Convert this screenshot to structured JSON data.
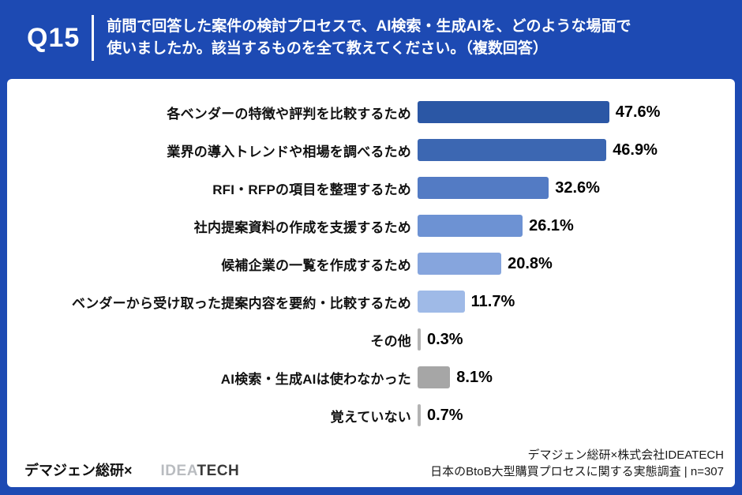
{
  "header": {
    "question_number": "Q15",
    "question_line1": "前問で回答した案件の検討プロセスで、AI検索・生成AIを、どのような場面で",
    "question_line2": "使いましたか。該当するものを全て教えてください。（複数回答）"
  },
  "chart_data": {
    "type": "bar",
    "orientation": "horizontal",
    "title": "前問で回答した案件の検討プロセスで、AI検索・生成AIを、どのような場面で使いましたか。該当するものを全て教えてください。（複数回答）",
    "unit": "%",
    "xlim": [
      0,
      50
    ],
    "grid": false,
    "value_labels_position": "right-of-bar",
    "categories": [
      "各ベンダーの特徴や評判を比較するため",
      "業界の導入トレンドや相場を調べるため",
      "RFI・RFPの項目を整理するため",
      "社内提案資料の作成を支援するため",
      "候補企業の一覧を作成するため",
      "ベンダーから受け取った提案内容を要約・比較するため",
      "その他",
      "AI検索・生成AIは使わなかった",
      "覚えていない"
    ],
    "values": [
      47.6,
      46.9,
      32.6,
      26.1,
      20.8,
      11.7,
      0.3,
      8.1,
      0.7
    ],
    "rows": [
      {
        "label": "各ベンダーの特徴や評判を比較するため",
        "value": 47.6,
        "value_label": "47.6%",
        "color": "#2b57a5"
      },
      {
        "label": "業界の導入トレンドや相場を調べるため",
        "value": 46.9,
        "value_label": "46.9%",
        "color": "#3c67b2"
      },
      {
        "label": "RFI・RFPの項目を整理するため",
        "value": 32.6,
        "value_label": "32.6%",
        "color": "#537bc4"
      },
      {
        "label": "社内提案資料の作成を支援するため",
        "value": 26.1,
        "value_label": "26.1%",
        "color": "#6d92d3"
      },
      {
        "label": "候補企業の一覧を作成するため",
        "value": 20.8,
        "value_label": "20.8%",
        "color": "#86a5dd"
      },
      {
        "label": "ベンダーから受け取った提案内容を要約・比較するため",
        "value": 11.7,
        "value_label": "11.7%",
        "color": "#9fbae7"
      },
      {
        "label": "その他",
        "value": 0.3,
        "value_label": "0.3%",
        "color": "#b3b3b3"
      },
      {
        "label": "AI検索・生成AIは使わなかった",
        "value": 8.1,
        "value_label": "8.1%",
        "color": "#a6a6a6"
      },
      {
        "label": "覚えていない",
        "value": 0.7,
        "value_label": "0.7%",
        "color": "#b3b3b3"
      }
    ],
    "colors": {
      "frame_blue": "#1d4ab3",
      "bar_dark": "#2b57a5",
      "bar_light": "#9fbae7",
      "bar_gray": "#a6a6a6"
    }
  },
  "footer": {
    "left_brand_text": "デマジェン総研×",
    "logo_idea": "IDEA",
    "logo_tech": "TECH",
    "source_line1": "デマジェン総研×株式会社IDEATECH",
    "source_line2": "日本のBtoB大型購買プロセスに関する実態調査 | n=307"
  }
}
